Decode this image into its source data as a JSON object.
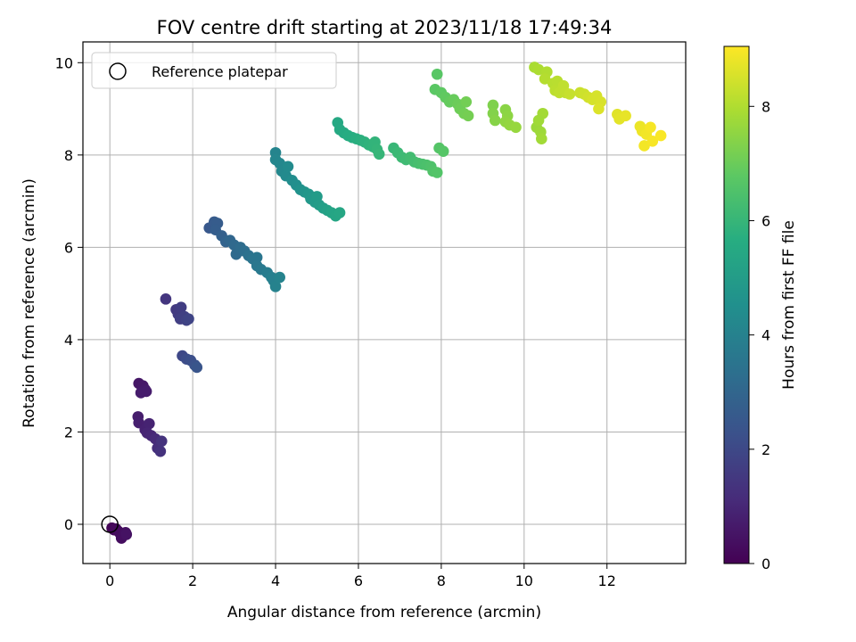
{
  "chart_data": {
    "type": "scatter",
    "title": "FOV centre drift starting at 2023/11/18 17:49:34",
    "xlabel": "Angular distance from reference (arcmin)",
    "ylabel": "Rotation from reference (arcmin)",
    "xlim": [
      -0.65,
      13.9
    ],
    "ylim": [
      -0.85,
      10.45
    ],
    "xticks": [
      "0",
      "2",
      "4",
      "6",
      "8",
      "10",
      "12"
    ],
    "yticks": [
      "0",
      "2",
      "4",
      "6",
      "8",
      "10"
    ],
    "grid": true,
    "legend": {
      "label": "Reference platepar",
      "placement": "top-left"
    },
    "reference_point": {
      "x": 0,
      "y": 0
    },
    "colorbar": {
      "label": "Hours from first FF file",
      "colormap": "viridis",
      "range": [
        0,
        9.05
      ],
      "ticks": [
        "0",
        "2",
        "4",
        "6",
        "8"
      ]
    },
    "points": [
      {
        "x": 0.05,
        "y": -0.08,
        "t": 0.1
      },
      {
        "x": 0.1,
        "y": -0.12,
        "t": 0.15
      },
      {
        "x": 0.15,
        "y": -0.1,
        "t": 0.2
      },
      {
        "x": 0.2,
        "y": -0.15,
        "t": 0.25
      },
      {
        "x": 0.25,
        "y": -0.2,
        "t": 0.3
      },
      {
        "x": 0.28,
        "y": -0.3,
        "t": 0.32
      },
      {
        "x": 0.32,
        "y": -0.25,
        "t": 0.35
      },
      {
        "x": 0.38,
        "y": -0.18,
        "t": 0.4
      },
      {
        "x": 0.4,
        "y": -0.22,
        "t": 0.45
      },
      {
        "x": 0.7,
        "y": 3.05,
        "t": 0.55
      },
      {
        "x": 0.8,
        "y": 3.0,
        "t": 0.6
      },
      {
        "x": 0.85,
        "y": 2.92,
        "t": 0.65
      },
      {
        "x": 0.75,
        "y": 2.85,
        "t": 0.7
      },
      {
        "x": 0.88,
        "y": 2.88,
        "t": 0.72
      },
      {
        "x": 0.68,
        "y": 2.33,
        "t": 0.75
      },
      {
        "x": 0.7,
        "y": 2.2,
        "t": 0.8
      },
      {
        "x": 0.85,
        "y": 2.05,
        "t": 0.85
      },
      {
        "x": 0.95,
        "y": 2.18,
        "t": 0.9
      },
      {
        "x": 0.9,
        "y": 1.98,
        "t": 0.95
      },
      {
        "x": 1.0,
        "y": 1.92,
        "t": 1.0
      },
      {
        "x": 1.1,
        "y": 1.85,
        "t": 1.1
      },
      {
        "x": 1.15,
        "y": 1.65,
        "t": 1.2
      },
      {
        "x": 1.22,
        "y": 1.58,
        "t": 1.3
      },
      {
        "x": 1.25,
        "y": 1.8,
        "t": 1.35
      },
      {
        "x": 1.35,
        "y": 4.88,
        "t": 1.45
      },
      {
        "x": 1.6,
        "y": 4.65,
        "t": 1.55
      },
      {
        "x": 1.65,
        "y": 4.55,
        "t": 1.6
      },
      {
        "x": 1.72,
        "y": 4.7,
        "t": 1.65
      },
      {
        "x": 1.7,
        "y": 4.45,
        "t": 1.7
      },
      {
        "x": 1.8,
        "y": 4.5,
        "t": 1.75
      },
      {
        "x": 1.85,
        "y": 4.42,
        "t": 1.8
      },
      {
        "x": 1.9,
        "y": 4.45,
        "t": 1.85
      },
      {
        "x": 1.75,
        "y": 3.65,
        "t": 2.0
      },
      {
        "x": 1.85,
        "y": 3.58,
        "t": 2.1
      },
      {
        "x": 1.95,
        "y": 3.55,
        "t": 2.2
      },
      {
        "x": 2.05,
        "y": 3.45,
        "t": 2.3
      },
      {
        "x": 2.1,
        "y": 3.4,
        "t": 2.4
      },
      {
        "x": 2.4,
        "y": 6.42,
        "t": 2.5
      },
      {
        "x": 2.52,
        "y": 6.55,
        "t": 2.6
      },
      {
        "x": 2.6,
        "y": 6.52,
        "t": 2.65
      },
      {
        "x": 2.55,
        "y": 6.38,
        "t": 2.7
      },
      {
        "x": 2.7,
        "y": 6.25,
        "t": 2.8
      },
      {
        "x": 2.8,
        "y": 6.12,
        "t": 2.9
      },
      {
        "x": 2.9,
        "y": 6.15,
        "t": 3.0
      },
      {
        "x": 3.0,
        "y": 6.05,
        "t": 3.1
      },
      {
        "x": 3.05,
        "y": 5.85,
        "t": 3.15
      },
      {
        "x": 3.15,
        "y": 6.0,
        "t": 3.2
      },
      {
        "x": 3.25,
        "y": 5.92,
        "t": 3.3
      },
      {
        "x": 3.35,
        "y": 5.82,
        "t": 3.4
      },
      {
        "x": 3.45,
        "y": 5.75,
        "t": 3.5
      },
      {
        "x": 3.55,
        "y": 5.78,
        "t": 3.55
      },
      {
        "x": 3.55,
        "y": 5.6,
        "t": 3.6
      },
      {
        "x": 3.65,
        "y": 5.52,
        "t": 3.7
      },
      {
        "x": 3.8,
        "y": 5.45,
        "t": 3.8
      },
      {
        "x": 3.9,
        "y": 5.35,
        "t": 3.9
      },
      {
        "x": 3.95,
        "y": 5.28,
        "t": 3.95
      },
      {
        "x": 4.0,
        "y": 5.15,
        "t": 4.0
      },
      {
        "x": 4.1,
        "y": 5.35,
        "t": 4.05
      },
      {
        "x": 4.0,
        "y": 8.05,
        "t": 4.1
      },
      {
        "x": 4.0,
        "y": 7.9,
        "t": 4.15
      },
      {
        "x": 4.1,
        "y": 7.82,
        "t": 4.2
      },
      {
        "x": 4.15,
        "y": 7.65,
        "t": 4.25
      },
      {
        "x": 4.25,
        "y": 7.55,
        "t": 4.3
      },
      {
        "x": 4.3,
        "y": 7.75,
        "t": 4.35
      },
      {
        "x": 4.4,
        "y": 7.45,
        "t": 4.4
      },
      {
        "x": 4.5,
        "y": 7.35,
        "t": 4.5
      },
      {
        "x": 4.6,
        "y": 7.25,
        "t": 4.6
      },
      {
        "x": 4.7,
        "y": 7.2,
        "t": 4.7
      },
      {
        "x": 4.8,
        "y": 7.15,
        "t": 4.8
      },
      {
        "x": 4.85,
        "y": 7.05,
        "t": 4.85
      },
      {
        "x": 4.95,
        "y": 6.98,
        "t": 4.9
      },
      {
        "x": 5.0,
        "y": 7.1,
        "t": 4.95
      },
      {
        "x": 5.05,
        "y": 6.92,
        "t": 5.0
      },
      {
        "x": 5.15,
        "y": 6.85,
        "t": 5.1
      },
      {
        "x": 5.25,
        "y": 6.8,
        "t": 5.2
      },
      {
        "x": 5.35,
        "y": 6.75,
        "t": 5.3
      },
      {
        "x": 5.45,
        "y": 6.68,
        "t": 5.35
      },
      {
        "x": 5.55,
        "y": 6.75,
        "t": 5.4
      },
      {
        "x": 5.5,
        "y": 8.7,
        "t": 5.45
      },
      {
        "x": 5.55,
        "y": 8.55,
        "t": 5.5
      },
      {
        "x": 5.65,
        "y": 8.48,
        "t": 5.55
      },
      {
        "x": 5.75,
        "y": 8.42,
        "t": 5.6
      },
      {
        "x": 5.85,
        "y": 8.38,
        "t": 5.65
      },
      {
        "x": 5.95,
        "y": 8.35,
        "t": 5.7
      },
      {
        "x": 6.05,
        "y": 8.32,
        "t": 5.75
      },
      {
        "x": 6.15,
        "y": 8.28,
        "t": 5.8
      },
      {
        "x": 6.25,
        "y": 8.22,
        "t": 5.85
      },
      {
        "x": 6.35,
        "y": 8.18,
        "t": 5.9
      },
      {
        "x": 6.4,
        "y": 8.28,
        "t": 5.92
      },
      {
        "x": 6.45,
        "y": 8.12,
        "t": 5.95
      },
      {
        "x": 6.5,
        "y": 8.02,
        "t": 6.0
      },
      {
        "x": 6.85,
        "y": 8.15,
        "t": 6.05
      },
      {
        "x": 6.95,
        "y": 8.05,
        "t": 6.1
      },
      {
        "x": 7.05,
        "y": 7.95,
        "t": 6.15
      },
      {
        "x": 7.15,
        "y": 7.9,
        "t": 6.2
      },
      {
        "x": 7.25,
        "y": 7.95,
        "t": 6.25
      },
      {
        "x": 7.35,
        "y": 7.85,
        "t": 6.3
      },
      {
        "x": 7.45,
        "y": 7.82,
        "t": 6.35
      },
      {
        "x": 7.55,
        "y": 7.8,
        "t": 6.4
      },
      {
        "x": 7.65,
        "y": 7.78,
        "t": 6.45
      },
      {
        "x": 7.75,
        "y": 7.75,
        "t": 6.5
      },
      {
        "x": 7.8,
        "y": 7.65,
        "t": 6.55
      },
      {
        "x": 7.9,
        "y": 7.62,
        "t": 6.6
      },
      {
        "x": 7.95,
        "y": 8.15,
        "t": 6.62
      },
      {
        "x": 8.05,
        "y": 8.08,
        "t": 6.65
      },
      {
        "x": 7.9,
        "y": 9.75,
        "t": 6.7
      },
      {
        "x": 7.85,
        "y": 9.42,
        "t": 6.75
      },
      {
        "x": 8.0,
        "y": 9.35,
        "t": 6.8
      },
      {
        "x": 8.1,
        "y": 9.25,
        "t": 6.85
      },
      {
        "x": 8.2,
        "y": 9.15,
        "t": 6.9
      },
      {
        "x": 8.3,
        "y": 9.2,
        "t": 6.95
      },
      {
        "x": 8.4,
        "y": 9.1,
        "t": 7.0
      },
      {
        "x": 8.45,
        "y": 9.0,
        "t": 7.05
      },
      {
        "x": 8.55,
        "y": 8.9,
        "t": 7.1
      },
      {
        "x": 8.6,
        "y": 9.15,
        "t": 7.12
      },
      {
        "x": 8.65,
        "y": 8.85,
        "t": 7.15
      },
      {
        "x": 9.25,
        "y": 9.08,
        "t": 7.3
      },
      {
        "x": 9.25,
        "y": 8.9,
        "t": 7.35
      },
      {
        "x": 9.3,
        "y": 8.75,
        "t": 7.4
      },
      {
        "x": 9.55,
        "y": 8.98,
        "t": 7.45
      },
      {
        "x": 9.6,
        "y": 8.85,
        "t": 7.5
      },
      {
        "x": 9.55,
        "y": 8.72,
        "t": 7.55
      },
      {
        "x": 9.65,
        "y": 8.65,
        "t": 7.6
      },
      {
        "x": 9.8,
        "y": 8.6,
        "t": 7.65
      },
      {
        "x": 10.3,
        "y": 8.6,
        "t": 7.7
      },
      {
        "x": 10.4,
        "y": 8.5,
        "t": 7.75
      },
      {
        "x": 10.42,
        "y": 8.35,
        "t": 7.8
      },
      {
        "x": 10.45,
        "y": 8.9,
        "t": 7.82
      },
      {
        "x": 10.35,
        "y": 8.75,
        "t": 7.78
      },
      {
        "x": 10.25,
        "y": 9.9,
        "t": 7.9
      },
      {
        "x": 10.35,
        "y": 9.85,
        "t": 7.95
      },
      {
        "x": 10.55,
        "y": 9.8,
        "t": 8.0
      },
      {
        "x": 10.5,
        "y": 9.65,
        "t": 8.05
      },
      {
        "x": 10.7,
        "y": 9.55,
        "t": 8.1
      },
      {
        "x": 10.8,
        "y": 9.6,
        "t": 8.12
      },
      {
        "x": 10.75,
        "y": 9.4,
        "t": 8.15
      },
      {
        "x": 10.85,
        "y": 9.35,
        "t": 8.2
      },
      {
        "x": 10.95,
        "y": 9.5,
        "t": 8.22
      },
      {
        "x": 11.0,
        "y": 9.35,
        "t": 8.25
      },
      {
        "x": 11.1,
        "y": 9.32,
        "t": 8.3
      },
      {
        "x": 11.35,
        "y": 9.35,
        "t": 8.35
      },
      {
        "x": 11.45,
        "y": 9.32,
        "t": 8.4
      },
      {
        "x": 11.55,
        "y": 9.25,
        "t": 8.45
      },
      {
        "x": 11.65,
        "y": 9.2,
        "t": 8.5
      },
      {
        "x": 11.75,
        "y": 9.28,
        "t": 8.52
      },
      {
        "x": 11.85,
        "y": 9.15,
        "t": 8.55
      },
      {
        "x": 11.8,
        "y": 9.0,
        "t": 8.6
      },
      {
        "x": 12.25,
        "y": 8.88,
        "t": 8.65
      },
      {
        "x": 12.3,
        "y": 8.78,
        "t": 8.7
      },
      {
        "x": 12.45,
        "y": 8.85,
        "t": 8.75
      },
      {
        "x": 12.8,
        "y": 8.62,
        "t": 8.8
      },
      {
        "x": 12.85,
        "y": 8.52,
        "t": 8.85
      },
      {
        "x": 12.95,
        "y": 8.45,
        "t": 8.9
      },
      {
        "x": 12.9,
        "y": 8.2,
        "t": 8.92
      },
      {
        "x": 13.05,
        "y": 8.6,
        "t": 8.95
      },
      {
        "x": 13.1,
        "y": 8.3,
        "t": 8.97
      },
      {
        "x": 13.3,
        "y": 8.42,
        "t": 9.0
      }
    ]
  }
}
